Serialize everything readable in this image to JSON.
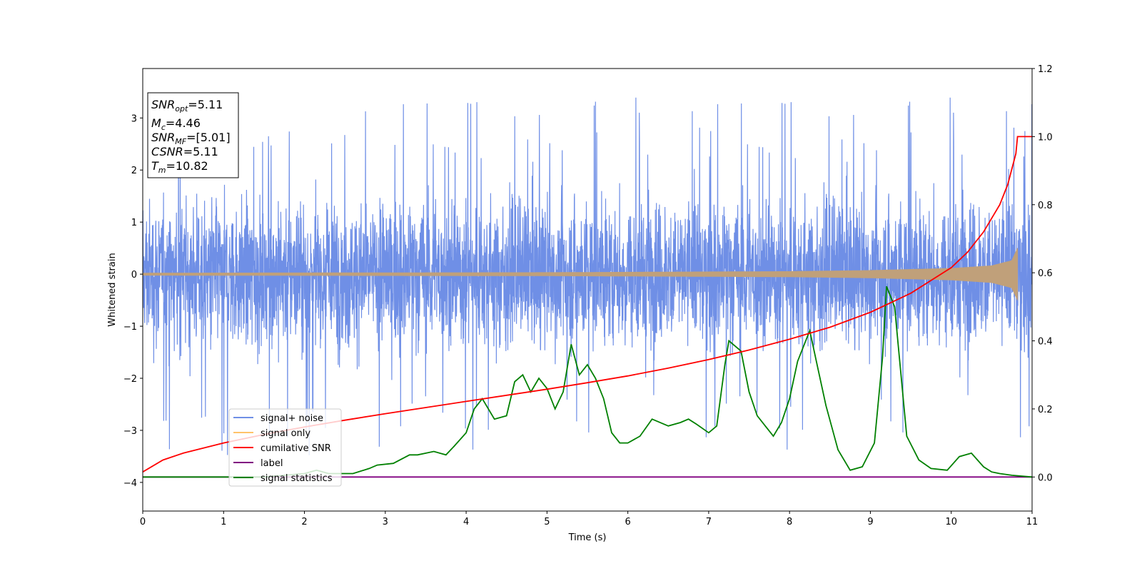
{
  "chart_data": {
    "type": "line",
    "xlabel": "Time (s)",
    "ylabel": "Whitened strain",
    "xlim": [
      0,
      11
    ],
    "ylim": [
      -4.55,
      3.95
    ],
    "y2lim": [
      -0.1,
      1.2
    ],
    "x_ticks": [
      "0",
      "1",
      "2",
      "3",
      "4",
      "5",
      "6",
      "7",
      "8",
      "9",
      "10",
      "11"
    ],
    "y_ticks": [
      "−4",
      "−3",
      "−2",
      "−1",
      "0",
      "1",
      "2",
      "3"
    ],
    "y2_ticks": [
      "0.0",
      "0.2",
      "0.4",
      "0.6",
      "0.8",
      "1.0",
      "1.2"
    ],
    "grid": false,
    "legend_position": "lower-left",
    "colors": {
      "signal_noise": "#6f8fe6",
      "signal_only": "#ffc36a",
      "signal_overlap": "#c0a07a",
      "cumulative": "#ff0000",
      "label": "#800080",
      "statistics": "#008000"
    },
    "series": [
      {
        "name": "signal+ noise",
        "axis": "left",
        "description_values": "noise band approx between -2.3 and 2.3 with spikes up to 3.55 and down to -4.15"
      },
      {
        "name": "signal only",
        "axis": "left",
        "amplitude_envelope": {
          "x": [
            0,
            5,
            8,
            9,
            10,
            10.5,
            10.75,
            10.82
          ],
          "amp": [
            0.02,
            0.03,
            0.05,
            0.07,
            0.11,
            0.16,
            0.26,
            0.5
          ]
        }
      },
      {
        "name": "cumilative SNR",
        "axis": "right",
        "x": [
          0,
          0.25,
          0.5,
          1,
          1.5,
          2,
          2.5,
          3,
          3.5,
          4,
          4.5,
          5,
          5.5,
          6,
          6.5,
          7,
          7.5,
          8,
          8.5,
          9,
          9.5,
          10,
          10.2,
          10.4,
          10.6,
          10.7,
          10.8,
          10.82,
          11
        ],
        "values": [
          0.015,
          0.05,
          0.07,
          0.1,
          0.125,
          0.147,
          0.167,
          0.186,
          0.204,
          0.222,
          0.24,
          0.258,
          0.277,
          0.297,
          0.32,
          0.345,
          0.373,
          0.405,
          0.44,
          0.484,
          0.54,
          0.615,
          0.66,
          0.72,
          0.8,
          0.86,
          0.95,
          1.0,
          1.0
        ]
      },
      {
        "name": "label",
        "axis": "right",
        "x": [
          0,
          11
        ],
        "values": [
          0.0,
          0.0
        ]
      },
      {
        "name": "signal statistics",
        "axis": "right",
        "x": [
          0,
          1.5,
          2,
          2.15,
          2.3,
          2.6,
          2.8,
          2.9,
          3.1,
          3.3,
          3.4,
          3.6,
          3.75,
          3.85,
          4,
          4.1,
          4.2,
          4.35,
          4.5,
          4.6,
          4.7,
          4.8,
          4.9,
          5,
          5.1,
          5.2,
          5.3,
          5.4,
          5.5,
          5.6,
          5.7,
          5.8,
          5.9,
          6.0,
          6.15,
          6.3,
          6.5,
          6.65,
          6.75,
          6.85,
          7.0,
          7.1,
          7.2,
          7.25,
          7.4,
          7.5,
          7.6,
          7.7,
          7.8,
          7.9,
          8.0,
          8.1,
          8.25,
          8.35,
          8.45,
          8.6,
          8.75,
          8.9,
          9.05,
          9.15,
          9.2,
          9.3,
          9.45,
          9.6,
          9.75,
          9.95,
          10.1,
          10.25,
          10.4,
          10.5,
          10.6,
          10.75,
          11
        ],
        "values": [
          0.0,
          0.0,
          0.01,
          0.02,
          0.01,
          0.01,
          0.025,
          0.035,
          0.04,
          0.065,
          0.065,
          0.075,
          0.065,
          0.09,
          0.13,
          0.2,
          0.23,
          0.17,
          0.18,
          0.28,
          0.3,
          0.25,
          0.29,
          0.26,
          0.2,
          0.25,
          0.39,
          0.3,
          0.33,
          0.29,
          0.23,
          0.13,
          0.1,
          0.1,
          0.12,
          0.17,
          0.15,
          0.16,
          0.17,
          0.155,
          0.13,
          0.15,
          0.33,
          0.4,
          0.37,
          0.25,
          0.18,
          0.15,
          0.12,
          0.16,
          0.23,
          0.34,
          0.43,
          0.32,
          0.21,
          0.08,
          0.02,
          0.03,
          0.1,
          0.35,
          0.56,
          0.5,
          0.12,
          0.05,
          0.025,
          0.02,
          0.06,
          0.07,
          0.03,
          0.015,
          0.01,
          0.005,
          0.0
        ]
      }
    ]
  },
  "info_box": {
    "line1_main": "SNR",
    "line1_sub": "opt",
    "line1_val": "=5.11",
    "line2_main": "M",
    "line2_sub": "c",
    "line2_val": "=4.46",
    "line3_main": "SNR",
    "line3_sub": "MF",
    "line3_val": "=[5.01]",
    "line4_main": "CSNR",
    "line4_val": "=5.11",
    "line5_main": "T",
    "line5_sub": "m",
    "line5_val": "=10.82"
  },
  "legend": {
    "items": [
      "signal+ noise",
      "signal only",
      "cumilative SNR",
      "label",
      "signal statistics"
    ]
  }
}
